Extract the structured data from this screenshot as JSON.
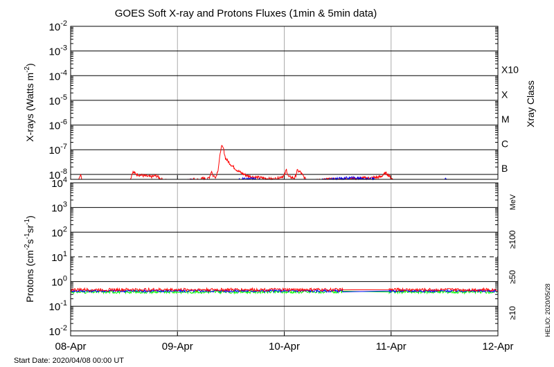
{
  "chart_data": [
    {
      "panel": "xrays",
      "type": "line",
      "title": "GOES Soft X-ray and Protons Fluxes   (1min & 5min data)",
      "ylabel_main": "X-rays (Watts m",
      "ylabel_sup": "-2",
      "ylabel_end": ")",
      "y_scale": "log",
      "ylim_exp": [
        -8.2,
        -2
      ],
      "y_ticks_exp": [
        "-8",
        "-7",
        "-6",
        "-5",
        "-4",
        "-3",
        "-2"
      ],
      "y_tick_base": "10",
      "right_axis_title": "Xray Class",
      "classes": [
        {
          "label": "B",
          "exp": -7
        },
        {
          "label": "C",
          "exp": -6
        },
        {
          "label": "M",
          "exp": -5
        },
        {
          "label": "X",
          "exp": -4
        },
        {
          "label": "X10",
          "exp": -3
        }
      ],
      "grid": "horizontal lines at each decade, vertical lines at day boundaries",
      "series": [
        {
          "name": "",
          "color": "#ff0000",
          "points": [
            [
              0.0,
              -8.45
            ],
            [
              0.03,
              -8.3
            ],
            [
              0.06,
              -8.45
            ],
            [
              0.09,
              -8.0
            ],
            [
              0.12,
              -8.45
            ],
            [
              0.18,
              -8.45
            ],
            [
              0.25,
              -8.4
            ],
            [
              0.35,
              -8.45
            ],
            [
              0.45,
              -8.45
            ],
            [
              0.5,
              -8.4
            ],
            [
              0.55,
              -8.35
            ],
            [
              0.58,
              -7.9
            ],
            [
              0.62,
              -8.0
            ],
            [
              0.68,
              -8.05
            ],
            [
              0.75,
              -8.1
            ],
            [
              0.8,
              -8.05
            ],
            [
              0.85,
              -8.2
            ],
            [
              0.9,
              -8.25
            ],
            [
              0.95,
              -8.3
            ],
            [
              1.0,
              -8.28
            ],
            [
              1.05,
              -8.3
            ],
            [
              1.1,
              -8.25
            ],
            [
              1.15,
              -8.2
            ],
            [
              1.2,
              -8.22
            ],
            [
              1.25,
              -8.15
            ],
            [
              1.28,
              -8.2
            ],
            [
              1.3,
              -8.1
            ],
            [
              1.32,
              -7.85
            ],
            [
              1.33,
              -8.05
            ],
            [
              1.36,
              -8.1
            ],
            [
              1.38,
              -7.8
            ],
            [
              1.4,
              -7.2
            ],
            [
              1.41,
              -6.85
            ],
            [
              1.43,
              -6.95
            ],
            [
              1.45,
              -7.35
            ],
            [
              1.5,
              -7.6
            ],
            [
              1.55,
              -7.8
            ],
            [
              1.6,
              -7.95
            ],
            [
              1.65,
              -8.05
            ],
            [
              1.7,
              -8.1
            ],
            [
              1.8,
              -8.15
            ],
            [
              1.9,
              -8.2
            ],
            [
              2.0,
              -8.05
            ],
            [
              2.02,
              -7.8
            ],
            [
              2.04,
              -8.1
            ],
            [
              2.1,
              -8.15
            ],
            [
              2.12,
              -7.85
            ],
            [
              2.15,
              -7.9
            ],
            [
              2.2,
              -8.2
            ],
            [
              2.3,
              -8.25
            ],
            [
              2.4,
              -8.2
            ],
            [
              2.5,
              -8.2
            ],
            [
              2.6,
              -8.18
            ],
            [
              2.7,
              -8.15
            ],
            [
              2.8,
              -8.15
            ],
            [
              2.9,
              -8.1
            ],
            [
              2.95,
              -7.95
            ],
            [
              2.97,
              -8.0
            ],
            [
              3.0,
              -8.15
            ],
            [
              3.05,
              -8.3
            ],
            [
              3.15,
              -8.35
            ],
            [
              3.3,
              -8.35
            ],
            [
              3.45,
              -8.35
            ],
            [
              3.55,
              -8.3
            ],
            [
              3.65,
              -8.25
            ],
            [
              3.7,
              -8.35
            ],
            [
              3.8,
              -8.35
            ],
            [
              3.9,
              -8.38
            ],
            [
              4.0,
              -8.4
            ]
          ]
        },
        {
          "name": "",
          "color": "#0000ff",
          "points": [
            [
              0.6,
              -8.45
            ],
            [
              0.7,
              -8.4
            ],
            [
              0.8,
              -8.35
            ],
            [
              0.9,
              -8.3
            ],
            [
              1.0,
              -8.3
            ],
            [
              1.1,
              -8.25
            ],
            [
              1.2,
              -8.25
            ],
            [
              1.3,
              -8.25
            ],
            [
              1.4,
              -8.28
            ],
            [
              1.5,
              -8.3
            ],
            [
              1.6,
              -8.2
            ],
            [
              1.7,
              -8.18
            ],
            [
              1.8,
              -8.25
            ],
            [
              1.9,
              -8.25
            ],
            [
              2.0,
              -8.25
            ],
            [
              2.1,
              -8.3
            ],
            [
              2.2,
              -8.25
            ],
            [
              2.3,
              -8.25
            ],
            [
              2.4,
              -8.22
            ],
            [
              2.5,
              -8.18
            ],
            [
              2.6,
              -8.15
            ],
            [
              2.7,
              -8.15
            ],
            [
              2.8,
              -8.18
            ],
            [
              2.9,
              -8.25
            ],
            [
              3.0,
              -8.28
            ],
            [
              3.05,
              -8.35
            ],
            [
              3.15,
              -8.4
            ],
            [
              3.3,
              -8.45
            ],
            [
              3.45,
              -8.35
            ],
            [
              3.5,
              -8.2
            ],
            [
              3.55,
              -8.25
            ],
            [
              3.6,
              -8.3
            ],
            [
              3.7,
              -8.33
            ],
            [
              3.8,
              -8.35
            ],
            [
              3.9,
              -8.38
            ],
            [
              4.0,
              -8.4
            ]
          ]
        }
      ]
    },
    {
      "panel": "protons",
      "type": "line",
      "ylabel_main": "Protons (cm",
      "ylabel_sup1": "-2",
      "ylabel_mid1": "s",
      "ylabel_sup2": "-1",
      "ylabel_mid2": "sr",
      "ylabel_sup3": "-1",
      "ylabel_end": ")",
      "y_scale": "log",
      "ylim_exp": [
        -2.2,
        4
      ],
      "y_ticks_exp": [
        "-2",
        "-1",
        "0",
        "1",
        "2",
        "3",
        "4"
      ],
      "y_tick_base": "10",
      "threshold_dashed_exp": 1,
      "energy_unit": "MeV",
      "legend": [
        {
          "label": "≥100",
          "color": "#00cc00"
        },
        {
          "label": "≥50",
          "color": "#0000cc"
        },
        {
          "label": "≥10",
          "color": "#ff0000"
        }
      ],
      "series": [
        {
          "name": "≥100",
          "color": "#00ff00",
          "level_exp": -0.42,
          "noise": 0.06
        },
        {
          "name": "≥50",
          "color": "#0000ff",
          "level_exp": -0.38,
          "noise": 0.05
        },
        {
          "name": "≥10",
          "color": "#ff0000",
          "level_exp": -0.33,
          "noise": 0.06
        }
      ],
      "data_gap_days": [
        2.55,
        2.98
      ]
    }
  ],
  "x_axis": {
    "ticks": [
      "08-Apr",
      "09-Apr",
      "10-Apr",
      "11-Apr",
      "12-Apr"
    ],
    "range_days": [
      0,
      4
    ]
  },
  "footer": {
    "start_date": "Start Date: 2020/04/08 00:00 UT",
    "credit": "HELIO: 2020/05/28"
  }
}
